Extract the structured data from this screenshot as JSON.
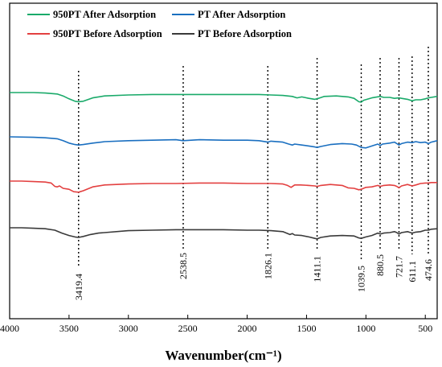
{
  "chart_data": {
    "type": "line",
    "title": "",
    "xlabel": "Wavenumber(cm⁻¹)",
    "ylabel": "",
    "xlim": [
      4000,
      400
    ],
    "x_reversed": true,
    "x_ticks": [
      4000,
      3500,
      3000,
      2500,
      2000,
      1500,
      1000,
      500
    ],
    "y_ticks_shown": false,
    "grid": false,
    "legend_placement": "top-left",
    "legend": [
      {
        "name": "950PT After Adsorption",
        "color": "#1aaa6a"
      },
      {
        "name": "PT After Adsorption",
        "color": "#1a6fc0"
      },
      {
        "name": "950PT Before Adsorption",
        "color": "#e34040"
      },
      {
        "name": "PT  Before  Adsorption",
        "color": "#3a3a3a"
      }
    ],
    "peak_lines": [
      3419.4,
      2538.5,
      1826.1,
      1411.1,
      1039.5,
      880.5,
      721.7,
      611.1,
      474.6
    ],
    "peak_labels": [
      "3419.4",
      "2538.5",
      "1826.1",
      "1411.1",
      "1039.5",
      "880.5",
      "721.7",
      "611.1",
      "474.6"
    ],
    "series": [
      {
        "name": "950PT After Adsorption",
        "color": "#1aaa6a",
        "x": [
          4000,
          3800,
          3700,
          3600,
          3550,
          3500,
          3450,
          3420,
          3380,
          3300,
          3200,
          3000,
          2800,
          2600,
          2400,
          2200,
          2000,
          1900,
          1800,
          1700,
          1620,
          1580,
          1540,
          1480,
          1430,
          1400,
          1350,
          1250,
          1150,
          1100,
          1060,
          1040,
          1020,
          950,
          880,
          850,
          800,
          760,
          720,
          700,
          650,
          611,
          580,
          540,
          500,
          474,
          450,
          400
        ],
        "y": [
          0.85,
          0.85,
          0.84,
          0.82,
          0.78,
          0.72,
          0.67,
          0.66,
          0.67,
          0.74,
          0.78,
          0.8,
          0.81,
          0.81,
          0.81,
          0.81,
          0.81,
          0.81,
          0.8,
          0.79,
          0.77,
          0.74,
          0.76,
          0.73,
          0.71,
          0.73,
          0.77,
          0.78,
          0.76,
          0.73,
          0.66,
          0.65,
          0.69,
          0.74,
          0.77,
          0.75,
          0.75,
          0.73,
          0.74,
          0.73,
          0.71,
          0.68,
          0.7,
          0.7,
          0.72,
          0.74,
          0.75,
          0.77
        ]
      },
      {
        "name": "PT After Adsorption",
        "color": "#1a6fc0",
        "x": [
          4000,
          3800,
          3700,
          3600,
          3550,
          3500,
          3450,
          3420,
          3380,
          3300,
          3200,
          3000,
          2800,
          2600,
          2540,
          2400,
          2200,
          2000,
          1900,
          1826,
          1800,
          1700,
          1650,
          1620,
          1600,
          1540,
          1480,
          1430,
          1411,
          1380,
          1300,
          1200,
          1120,
          1080,
          1040,
          1000,
          950,
          900,
          880,
          860,
          800,
          760,
          740,
          722,
          700,
          650,
          611,
          580,
          540,
          500,
          474,
          450,
          400
        ],
        "y": [
          0.61,
          0.6,
          0.59,
          0.57,
          0.53,
          0.48,
          0.45,
          0.44,
          0.45,
          0.48,
          0.51,
          0.53,
          0.54,
          0.55,
          0.53,
          0.55,
          0.54,
          0.54,
          0.53,
          0.5,
          0.52,
          0.5,
          0.46,
          0.44,
          0.46,
          0.44,
          0.42,
          0.4,
          0.39,
          0.41,
          0.45,
          0.47,
          0.46,
          0.44,
          0.39,
          0.38,
          0.42,
          0.46,
          0.43,
          0.46,
          0.48,
          0.5,
          0.47,
          0.44,
          0.47,
          0.5,
          0.49,
          0.51,
          0.49,
          0.5,
          0.47,
          0.5,
          0.53
        ]
      },
      {
        "name": "950PT Before Adsorption",
        "color": "#e34040",
        "x": [
          4000,
          3900,
          3800,
          3700,
          3650,
          3620,
          3600,
          3580,
          3550,
          3500,
          3460,
          3420,
          3380,
          3330,
          3300,
          3200,
          3000,
          2800,
          2600,
          2400,
          2200,
          2000,
          1900,
          1800,
          1700,
          1660,
          1630,
          1600,
          1550,
          1480,
          1430,
          1411,
          1380,
          1300,
          1200,
          1150,
          1100,
          1060,
          1040,
          1000,
          950,
          900,
          880,
          850,
          800,
          760,
          740,
          722,
          700,
          650,
          611,
          580,
          540,
          500,
          474,
          450,
          400
        ],
        "y": [
          0.35,
          0.35,
          0.34,
          0.33,
          0.31,
          0.24,
          0.23,
          0.25,
          0.2,
          0.18,
          0.13,
          0.12,
          0.15,
          0.2,
          0.23,
          0.27,
          0.29,
          0.3,
          0.3,
          0.31,
          0.31,
          0.3,
          0.3,
          0.3,
          0.29,
          0.26,
          0.22,
          0.27,
          0.27,
          0.26,
          0.25,
          0.24,
          0.26,
          0.28,
          0.26,
          0.21,
          0.2,
          0.17,
          0.18,
          0.22,
          0.23,
          0.26,
          0.24,
          0.26,
          0.27,
          0.26,
          0.24,
          0.21,
          0.25,
          0.28,
          0.25,
          0.27,
          0.3,
          0.31,
          0.31,
          0.32,
          0.32
        ]
      },
      {
        "name": "PT  Before  Adsorption",
        "color": "#3a3a3a",
        "x": [
          4000,
          3900,
          3800,
          3700,
          3620,
          3560,
          3500,
          3450,
          3420,
          3380,
          3320,
          3250,
          3200,
          3000,
          2800,
          2600,
          2400,
          2200,
          2000,
          1900,
          1800,
          1700,
          1640,
          1620,
          1600,
          1540,
          1480,
          1430,
          1411,
          1380,
          1300,
          1200,
          1100,
          1060,
          1040,
          1000,
          950,
          900,
          880,
          850,
          800,
          760,
          740,
          722,
          700,
          650,
          611,
          580,
          540,
          500,
          474,
          450,
          400
        ],
        "y": [
          0.0,
          0.0,
          -0.01,
          -0.02,
          -0.05,
          -0.11,
          -0.16,
          -0.19,
          -0.2,
          -0.18,
          -0.14,
          -0.11,
          -0.1,
          -0.06,
          -0.05,
          -0.04,
          -0.04,
          -0.04,
          -0.05,
          -0.05,
          -0.06,
          -0.08,
          -0.14,
          -0.12,
          -0.15,
          -0.16,
          -0.19,
          -0.22,
          -0.23,
          -0.2,
          -0.17,
          -0.16,
          -0.17,
          -0.21,
          -0.22,
          -0.19,
          -0.16,
          -0.11,
          -0.13,
          -0.11,
          -0.1,
          -0.08,
          -0.1,
          -0.13,
          -0.1,
          -0.08,
          -0.11,
          -0.09,
          -0.08,
          -0.05,
          -0.05,
          -0.03,
          -0.02
        ]
      }
    ]
  }
}
